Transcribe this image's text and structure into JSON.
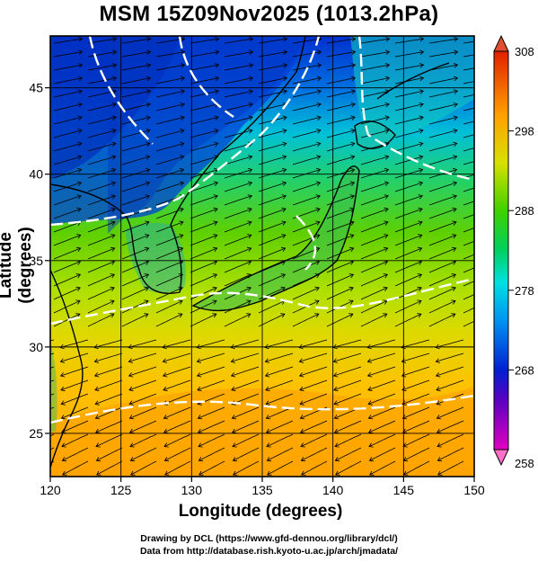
{
  "title": "MSM 15Z09Nov2025 (1013.2hPa)",
  "x_axis_label": "Longitude (degrees)",
  "y_axis_label": "Latitude  (degrees)",
  "x_ticks": [
    120,
    125,
    130,
    135,
    140,
    145,
    150
  ],
  "y_ticks": [
    25,
    30,
    35,
    40,
    45
  ],
  "colorbar": {
    "ticks": [
      258,
      268,
      278,
      288,
      298,
      308
    ],
    "min": 258,
    "max": 308,
    "colors": [
      "#ff80c0",
      "#c000c0",
      "#6000c0",
      "#0020d0",
      "#0060e0",
      "#00a0f0",
      "#00e0e0",
      "#00e0a0",
      "#00d040",
      "#40d000",
      "#a0e000",
      "#e0e000",
      "#ffc000",
      "#ff8000",
      "#ff4000",
      "#e02000"
    ]
  },
  "map": {
    "lon_range": [
      120,
      150
    ],
    "lat_range": [
      22.5,
      48
    ],
    "gridlines": true,
    "wind_pattern": "westerly flow over Japan, northeasterly flow south of 30N"
  },
  "credits": {
    "line1": "Drawing by DCL (https://www.gfd-dennou.org/library/dcl/)",
    "line2": "Data from http://database.rish.kyoto-u.ac.jp/arch/jmadata/"
  }
}
